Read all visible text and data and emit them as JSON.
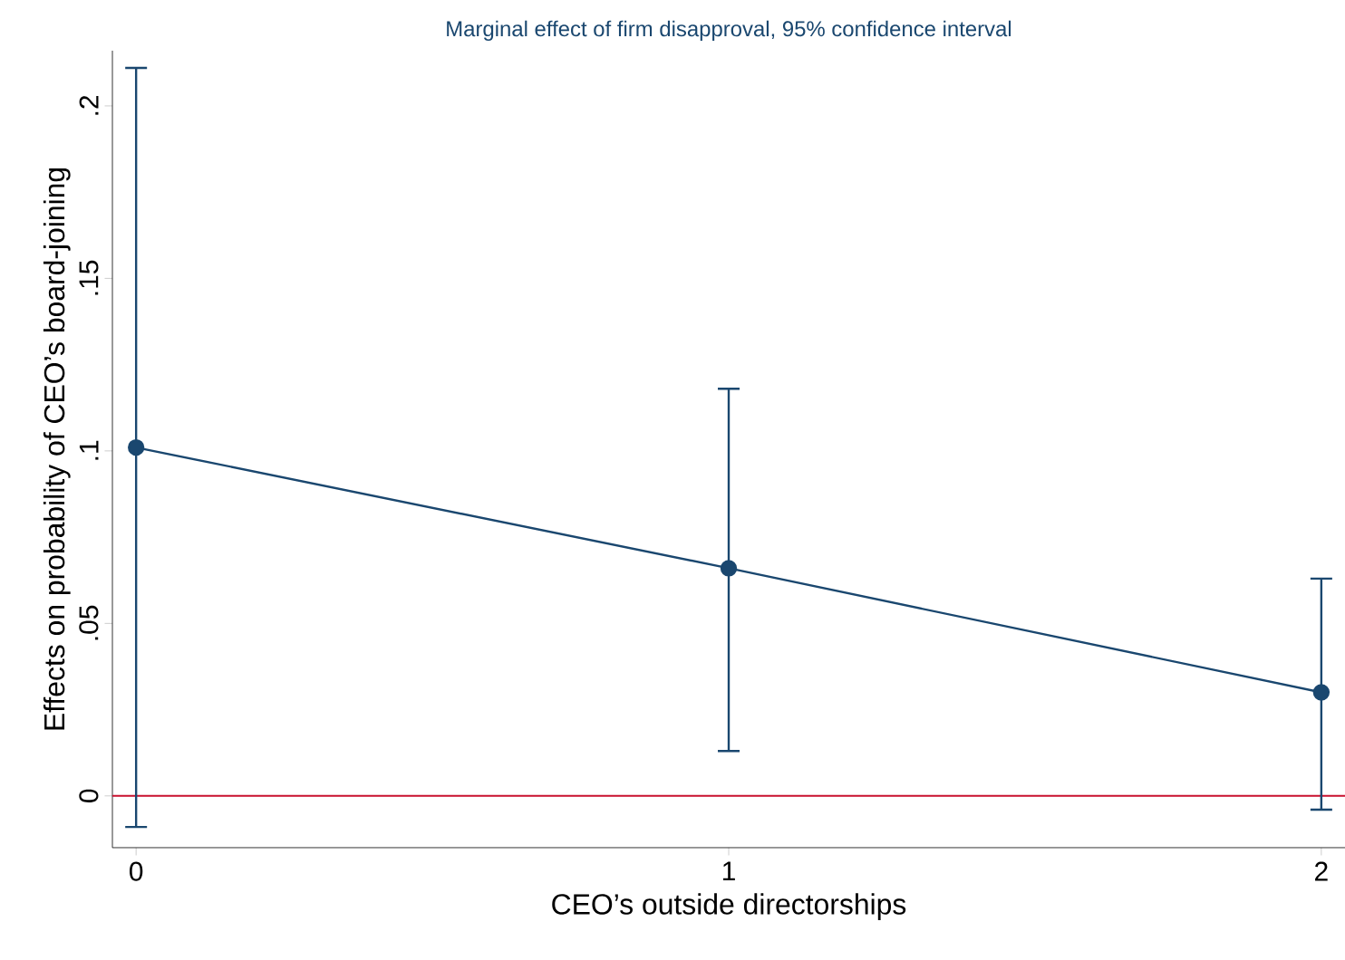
{
  "chart_data": {
    "type": "line",
    "title": "Marginal effect of firm disapproval, 95% confidence interval",
    "xlabel": "CEO’s outside directorships",
    "ylabel": "Effects on probability of CEO’s board-joining",
    "x": [
      0,
      1,
      2
    ],
    "series": [
      {
        "color": "#1a476f",
        "values": [
          0.101,
          0.066,
          0.03
        ],
        "errors": [
          [
            -0.009,
            0.211
          ],
          [
            0.013,
            0.118
          ],
          [
            -0.004,
            0.063
          ]
        ]
      }
    ],
    "xlim": [
      -0.04,
      2.04
    ],
    "xticks": [
      0,
      1,
      2
    ],
    "ylim": [
      -0.015,
      0.216
    ],
    "yticks": [
      0,
      {
        "value": 0.05,
        "label": ".05"
      },
      {
        "value": 0.1,
        "label": ".1"
      },
      {
        "value": 0.15,
        "label": ".15"
      },
      {
        "value": 0.2,
        "label": ".2"
      }
    ],
    "ref_lines": [
      {
        "axis": "y",
        "value": 0,
        "color": "#c8102e"
      }
    ],
    "marker": "circle",
    "line_style": "solid"
  }
}
